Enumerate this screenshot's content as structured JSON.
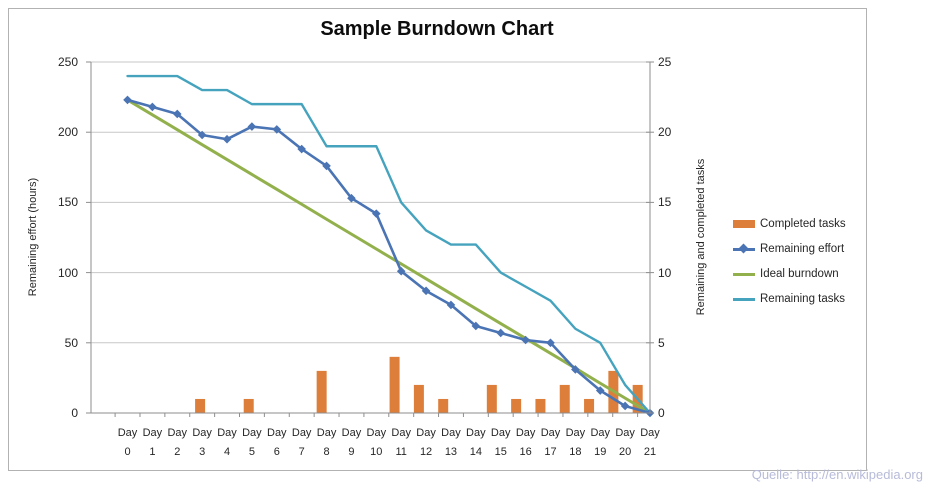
{
  "title": "Sample Burndown Chart",
  "watermark": "Quelle: http://en.wikipedia.org",
  "colors": {
    "completed_tasks": "#DD7E3B",
    "remaining_effort": "#4A74B4",
    "ideal_burndown": "#92B04C",
    "remaining_tasks": "#45A3BE",
    "gridline": "#c7c7c7",
    "axis_line": "#8e8e8e",
    "frame_border": "#b2b2b2",
    "text": "#262626",
    "watermark_text": "#b7bbd9"
  },
  "chart_data": {
    "type": "combo",
    "title": "Sample Burndown Chart",
    "category_prefix": "Day",
    "categories": [
      "0",
      "1",
      "2",
      "3",
      "4",
      "5",
      "6",
      "7",
      "8",
      "9",
      "10",
      "11",
      "12",
      "13",
      "14",
      "15",
      "16",
      "17",
      "18",
      "19",
      "20",
      "21"
    ],
    "grid": "horizontal",
    "legend_position": "right",
    "axes": {
      "left": {
        "title": "Remaining effort (hours)",
        "min": 0,
        "max": 250,
        "step": 50,
        "ticks": [
          0,
          50,
          100,
          150,
          200,
          250
        ]
      },
      "right": {
        "title": "Remaining and completed tasks",
        "min": 0,
        "max": 25,
        "step": 5,
        "ticks": [
          0,
          5,
          10,
          15,
          20,
          25
        ]
      }
    },
    "series": [
      {
        "name": "Completed tasks",
        "type": "bar",
        "axis": "right",
        "color": "#DD7E3B",
        "marker": "none",
        "values": [
          0,
          0,
          0,
          1,
          0,
          1,
          0,
          0,
          3,
          0,
          0,
          4,
          2,
          1,
          0,
          2,
          1,
          1,
          2,
          1,
          3,
          2
        ]
      },
      {
        "name": "Remaining effort",
        "type": "line",
        "axis": "left",
        "color": "#4A74B4",
        "marker": "diamond",
        "values": [
          223,
          218,
          213,
          198,
          195,
          204,
          202,
          188,
          176,
          153,
          142,
          101,
          87,
          77,
          62,
          57,
          52,
          50,
          31,
          16,
          5,
          0
        ]
      },
      {
        "name": "Ideal burndown",
        "type": "line",
        "axis": "left",
        "color": "#92B04C",
        "marker": "none",
        "values": [
          223,
          212.4,
          201.8,
          191.1,
          180.5,
          169.9,
          159.3,
          148.7,
          138.0,
          127.4,
          116.8,
          106.2,
          95.6,
          85.0,
          74.3,
          63.7,
          53.1,
          42.5,
          31.9,
          21.2,
          10.6,
          0
        ]
      },
      {
        "name": "Remaining tasks",
        "type": "line",
        "axis": "right",
        "color": "#45A3BE",
        "marker": "none",
        "values": [
          24,
          24,
          24,
          23,
          23,
          22,
          22,
          22,
          19,
          19,
          19,
          15,
          13,
          12,
          12,
          10,
          9,
          8,
          6,
          5,
          2,
          0
        ]
      }
    ]
  }
}
